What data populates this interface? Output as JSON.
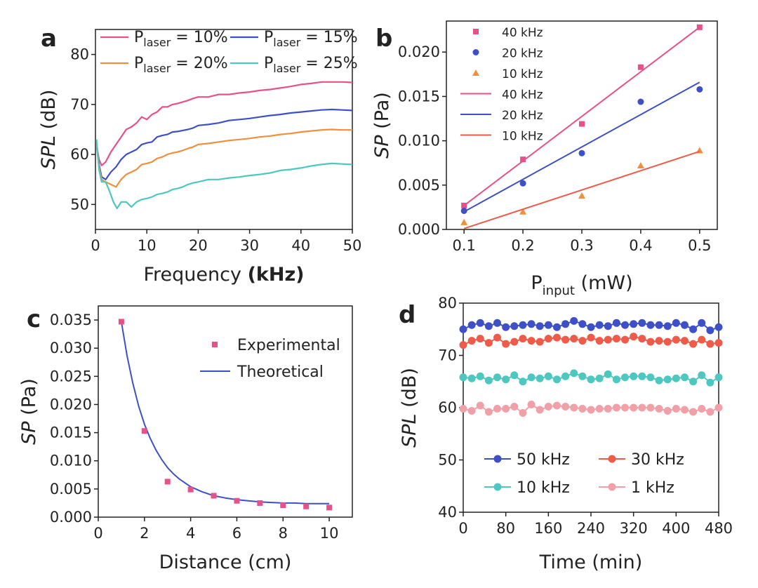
{
  "colors": {
    "pink": "#e8508a",
    "blue": "#3e50c8",
    "orange": "#f28e3c",
    "teal": "#4dc8c0",
    "red": "#f05a48",
    "lightpink": "#f2a0a8"
  },
  "chart_data": [
    {
      "panel": "a",
      "type": "line",
      "xlabel_main": "Frequency ",
      "xlabel_unit": "(kHz)",
      "ylabel_italic": "SPL",
      "ylabel_unit": " (dB)",
      "xlim": [
        0,
        50
      ],
      "ylim": [
        45,
        85
      ],
      "xticks": [
        0,
        10,
        20,
        30,
        40,
        50
      ],
      "yticks": [
        50,
        60,
        70,
        80
      ],
      "legend": "top, 2 columns",
      "series": [
        {
          "name_main": "P",
          "name_sub": "laser",
          "name_tail": " = 10%",
          "color": "#e8508a",
          "x": [
            0.2,
            0.7,
            1.2,
            2,
            3,
            4,
            5,
            6,
            7,
            8,
            9,
            10,
            11,
            12,
            13,
            14,
            15,
            16,
            17,
            18,
            19,
            20,
            22,
            24,
            26,
            28,
            30,
            32,
            34,
            36,
            38,
            40,
            42,
            44,
            46,
            48,
            50
          ],
          "y": [
            62,
            59,
            57.8,
            58.5,
            60.5,
            62,
            63.5,
            65,
            65.5,
            66.3,
            67.5,
            67,
            68,
            68.5,
            69.5,
            69.5,
            70,
            70.2,
            70.5,
            70.8,
            71.2,
            71.5,
            71.5,
            72,
            72,
            72.3,
            72.5,
            72.8,
            73,
            73.3,
            73.6,
            74,
            74.2,
            74.5,
            74.5,
            74.5,
            74.4
          ]
        },
        {
          "name_main": "P",
          "name_sub": "laser",
          "name_tail": " = 15%",
          "color": "#3e50c8",
          "x": [
            0.2,
            0.7,
            1.2,
            2,
            3,
            4,
            5,
            6,
            7,
            8,
            9,
            10,
            11,
            12,
            13,
            14,
            15,
            16,
            17,
            18,
            19,
            20,
            22,
            24,
            26,
            28,
            30,
            32,
            34,
            36,
            38,
            40,
            42,
            44,
            46,
            48,
            50
          ],
          "y": [
            62,
            58,
            55.5,
            55,
            56.5,
            57.5,
            59,
            60,
            60.5,
            61,
            62,
            62.3,
            62.5,
            63.5,
            63.8,
            64,
            64.5,
            64.6,
            64.8,
            65,
            65.3,
            65.8,
            66,
            66.3,
            66.8,
            67,
            67.2,
            67.5,
            67.8,
            68,
            68.3,
            68.5,
            68.7,
            68.9,
            69,
            68.9,
            68.8
          ]
        },
        {
          "name_main": "P",
          "name_sub": "laser",
          "name_tail": " = 20%",
          "color": "#f28e3c",
          "x": [
            0.2,
            0.7,
            1.2,
            2,
            3,
            4,
            5,
            6,
            7,
            8,
            9,
            10,
            11,
            12,
            13,
            14,
            15,
            16,
            17,
            18,
            19,
            20,
            22,
            24,
            26,
            28,
            30,
            32,
            34,
            36,
            38,
            40,
            42,
            44,
            46,
            48,
            50
          ],
          "y": [
            62,
            57.5,
            55,
            54.5,
            54,
            53.5,
            55,
            56,
            56.5,
            57,
            58,
            58.2,
            58.5,
            59.2,
            59.5,
            60,
            60.3,
            60.5,
            60.8,
            61.2,
            61.5,
            62,
            62.2,
            62.5,
            62.8,
            63,
            63.2,
            63.5,
            63.7,
            64,
            64.2,
            64.5,
            64.7,
            64.9,
            65,
            64.9,
            64.9
          ]
        },
        {
          "name_main": "P",
          "name_sub": "laser",
          "name_tail": " = 25%",
          "color": "#4dc8c0",
          "x": [
            0.2,
            0.7,
            1.2,
            2,
            2.8,
            3.5,
            4.2,
            5,
            6,
            7,
            8,
            9,
            10,
            11,
            12,
            13,
            14,
            15,
            16,
            17,
            18,
            19,
            20,
            22,
            24,
            26,
            28,
            30,
            32,
            34,
            36,
            38,
            40,
            42,
            44,
            46,
            48,
            50
          ],
          "y": [
            63,
            57,
            54.5,
            54.5,
            52.5,
            50.5,
            49.2,
            50.5,
            50.5,
            49.5,
            50.5,
            51,
            51.2,
            51.5,
            52,
            52.2,
            52.5,
            53,
            53.2,
            53.5,
            54,
            54.3,
            54.5,
            55,
            55,
            55.3,
            55.5,
            55.8,
            56,
            56.3,
            56.8,
            57,
            57.3,
            57.7,
            58,
            58.2,
            58.1,
            58
          ]
        }
      ]
    },
    {
      "panel": "b",
      "type": "scatter",
      "xlabel_main": "P",
      "xlabel_sub": "input",
      "xlabel_unit": " (mW)",
      "ylabel_italic": "SP",
      "ylabel_unit": " (Pa)",
      "xlim": [
        0.07,
        0.53
      ],
      "ylim": [
        0,
        0.0235
      ],
      "xticks": [
        "0.1",
        "0.2",
        "0.3",
        "0.4",
        "0.5"
      ],
      "yticks": [
        "0.000",
        "0.005",
        "0.010",
        "0.015",
        "0.020"
      ],
      "legend": "top-left",
      "series": [
        {
          "name": "40 kHz",
          "kind": "scatter",
          "marker": "square",
          "color": "#e8508a",
          "x": [
            0.1,
            0.2,
            0.3,
            0.4,
            0.5
          ],
          "y": [
            0.0027,
            0.0079,
            0.0119,
            0.0183,
            0.0228
          ]
        },
        {
          "name": "20 kHz",
          "kind": "scatter",
          "marker": "circle",
          "color": "#3e50c8",
          "x": [
            0.1,
            0.2,
            0.3,
            0.4,
            0.5
          ],
          "y": [
            0.0021,
            0.0052,
            0.0086,
            0.0144,
            0.0158
          ]
        },
        {
          "name": "10 kHz",
          "kind": "scatter",
          "marker": "triangle",
          "color": "#f28e3c",
          "x": [
            0.1,
            0.2,
            0.3,
            0.4,
            0.5
          ],
          "y": [
            0.0008,
            0.002,
            0.0038,
            0.0072,
            0.0089
          ]
        },
        {
          "name": "40 kHz",
          "kind": "line",
          "color": "#e8508a",
          "x": [
            0.1,
            0.5
          ],
          "y": [
            0.0027,
            0.0228
          ]
        },
        {
          "name": "20 kHz",
          "kind": "line",
          "color": "#3e50c8",
          "x": [
            0.1,
            0.5
          ],
          "y": [
            0.002,
            0.0166
          ]
        },
        {
          "name": "10 kHz",
          "kind": "line",
          "color": "#f05a48",
          "x": [
            0.1,
            0.5
          ],
          "y": [
            0.0001,
            0.0088
          ]
        }
      ]
    },
    {
      "panel": "c",
      "type": "scatter",
      "xlabel_main": "Distance (cm)",
      "ylabel_italic": "SP",
      "ylabel_unit": " (Pa)",
      "xlim": [
        0,
        11
      ],
      "ylim": [
        0,
        0.0375
      ],
      "xticks": [
        "0",
        "2",
        "4",
        "6",
        "8",
        "10"
      ],
      "yticks": [
        "0.000",
        "0.005",
        "0.010",
        "0.015",
        "0.020",
        "0.025",
        "0.030",
        "0.035"
      ],
      "legend": "top-right",
      "series": [
        {
          "name": "Experimental",
          "kind": "scatter",
          "marker": "square",
          "color": "#e8508a",
          "x": [
            1,
            2,
            3,
            4,
            5,
            6,
            7,
            8,
            9,
            10
          ],
          "y": [
            0.0347,
            0.0153,
            0.0063,
            0.0049,
            0.0038,
            0.0029,
            0.0025,
            0.0021,
            0.0019,
            0.0017
          ]
        },
        {
          "name": "Theoretical",
          "kind": "line",
          "color": "#3e50c8",
          "x": [
            1,
            1.25,
            1.5,
            1.75,
            2,
            2.25,
            2.5,
            2.75,
            3,
            3.25,
            3.5,
            4,
            4.5,
            5,
            5.5,
            6,
            6.5,
            7,
            7.5,
            8,
            8.5,
            9,
            9.5,
            10
          ],
          "y": [
            0.0347,
            0.0286,
            0.0237,
            0.0197,
            0.0165,
            0.014,
            0.0119,
            0.0102,
            0.0088,
            0.0077,
            0.0068,
            0.0054,
            0.0045,
            0.0038,
            0.0034,
            0.0031,
            0.0029,
            0.0027,
            0.0026,
            0.0025,
            0.0025,
            0.0024,
            0.0024,
            0.0024
          ]
        }
      ]
    },
    {
      "panel": "d",
      "type": "line",
      "xlabel_main": "Time (min)",
      "ylabel_italic": "SPL",
      "ylabel_unit": " (dB)",
      "xlim": [
        0,
        480
      ],
      "ylim": [
        40,
        80
      ],
      "xticks": [
        "0",
        "80",
        "160",
        "240",
        "320",
        "400",
        "480"
      ],
      "yticks": [
        "40",
        "50",
        "60",
        "70",
        "80"
      ],
      "legend": "bottom, 2 columns",
      "x": [
        0,
        16,
        32,
        48,
        64,
        80,
        96,
        112,
        128,
        144,
        160,
        176,
        192,
        208,
        224,
        240,
        256,
        272,
        288,
        304,
        320,
        336,
        352,
        368,
        384,
        400,
        416,
        432,
        448,
        464,
        480
      ],
      "series": [
        {
          "name": "50 kHz",
          "color": "#3e50c8",
          "y": [
            75,
            75.8,
            76.2,
            75.6,
            76.2,
            75.4,
            75.6,
            75.8,
            76,
            75.6,
            75.8,
            75.4,
            76,
            76.6,
            76,
            75.4,
            75.8,
            75.6,
            76.2,
            75.8,
            76,
            76.2,
            75.8,
            75.8,
            75.6,
            76.2,
            75.8,
            75,
            76.2,
            74.8,
            75.4
          ]
        },
        {
          "name": "30 kHz",
          "color": "#f05a48",
          "y": [
            72,
            72.8,
            73.2,
            72.4,
            73.4,
            72.2,
            72.6,
            73.2,
            72.8,
            72.6,
            73.2,
            73.4,
            73,
            73.2,
            72.8,
            73.4,
            72.8,
            73,
            73.2,
            73,
            73.6,
            73.2,
            72.6,
            72.8,
            72.6,
            73,
            72.8,
            72.2,
            73,
            72.2,
            72.4
          ]
        },
        {
          "name": "10 kHz",
          "color": "#4dc8c0",
          "y": [
            65.8,
            65.6,
            66,
            65.2,
            65.8,
            65.4,
            66.2,
            65,
            65.8,
            65.6,
            66,
            65.4,
            66,
            66.6,
            66,
            65.4,
            65.6,
            66.4,
            65.4,
            65.8,
            66,
            66,
            65.8,
            65.2,
            65.4,
            65.6,
            65.8,
            65,
            66.2,
            64.8,
            65.8
          ]
        },
        {
          "name": "1 kHz",
          "color": "#f2a0a8",
          "y": [
            59.8,
            59.4,
            60.4,
            59.2,
            59.8,
            59.8,
            60.2,
            59,
            60.6,
            59.6,
            60.2,
            60.4,
            60.2,
            60,
            59.8,
            59.6,
            59.8,
            59.8,
            60,
            60,
            60,
            60,
            60,
            59.8,
            59.4,
            59.8,
            59.6,
            59.2,
            59.8,
            59.2,
            60
          ]
        }
      ]
    }
  ]
}
